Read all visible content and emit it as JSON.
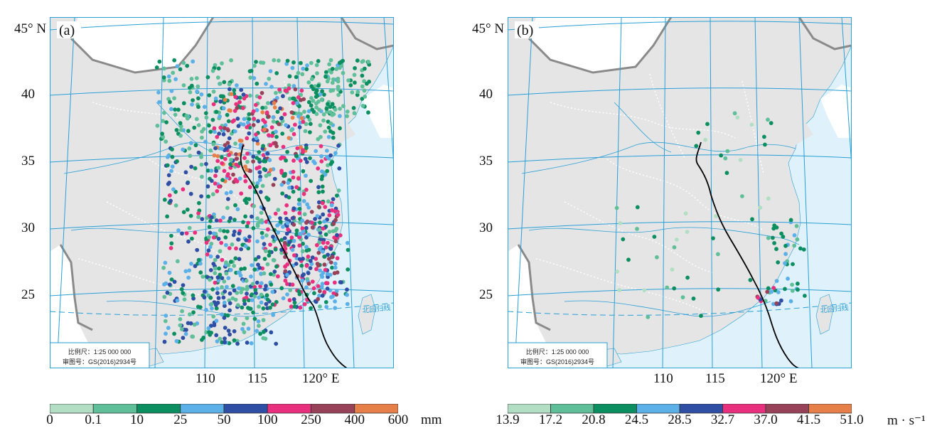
{
  "panels": [
    {
      "id": "a",
      "label": "(a)",
      "lat_labels": [
        "45° N",
        "40",
        "35",
        "30",
        "25"
      ],
      "lon_labels": [
        "110",
        "115",
        "120° E"
      ],
      "tropic_label": "北回归线",
      "scale_text": "比例尺：1:25 000 000",
      "map_number": "审图号：GS(2016)2934号",
      "legend_ticks": [
        "0",
        "0.1",
        "10",
        "25",
        "50",
        "100",
        "250",
        "400",
        "600"
      ],
      "legend_unit": "mm",
      "legend_colors": [
        "#b2dfc4",
        "#5fbf98",
        "#0c8f60",
        "#5cb0e8",
        "#2e4fa3",
        "#e8307e",
        "#98425a",
        "#e77f48"
      ]
    },
    {
      "id": "b",
      "label": "(b)",
      "lat_labels": [
        "45° N",
        "40",
        "35",
        "30",
        "25"
      ],
      "lon_labels": [
        "110",
        "115",
        "120° E"
      ],
      "tropic_label": "北回归线",
      "scale_text": "比例尺：1:25 000 000",
      "map_number": "审图号：GS(2016)2934号",
      "legend_ticks": [
        "13.9",
        "17.2",
        "20.8",
        "24.5",
        "28.5",
        "32.7",
        "37.0",
        "41.5",
        "51.0"
      ],
      "legend_unit": "m · s⁻¹",
      "legend_colors": [
        "#b2dfc4",
        "#5fbf98",
        "#0c8f60",
        "#5cb0e8",
        "#2e4fa3",
        "#e8307e",
        "#98425a",
        "#e77f48"
      ]
    }
  ],
  "colors": {
    "land": "#e5e5e6",
    "sea": "#dff1fa",
    "grid": "#2a9fd6",
    "track": "#000000",
    "outer_land": "#ffffff"
  }
}
